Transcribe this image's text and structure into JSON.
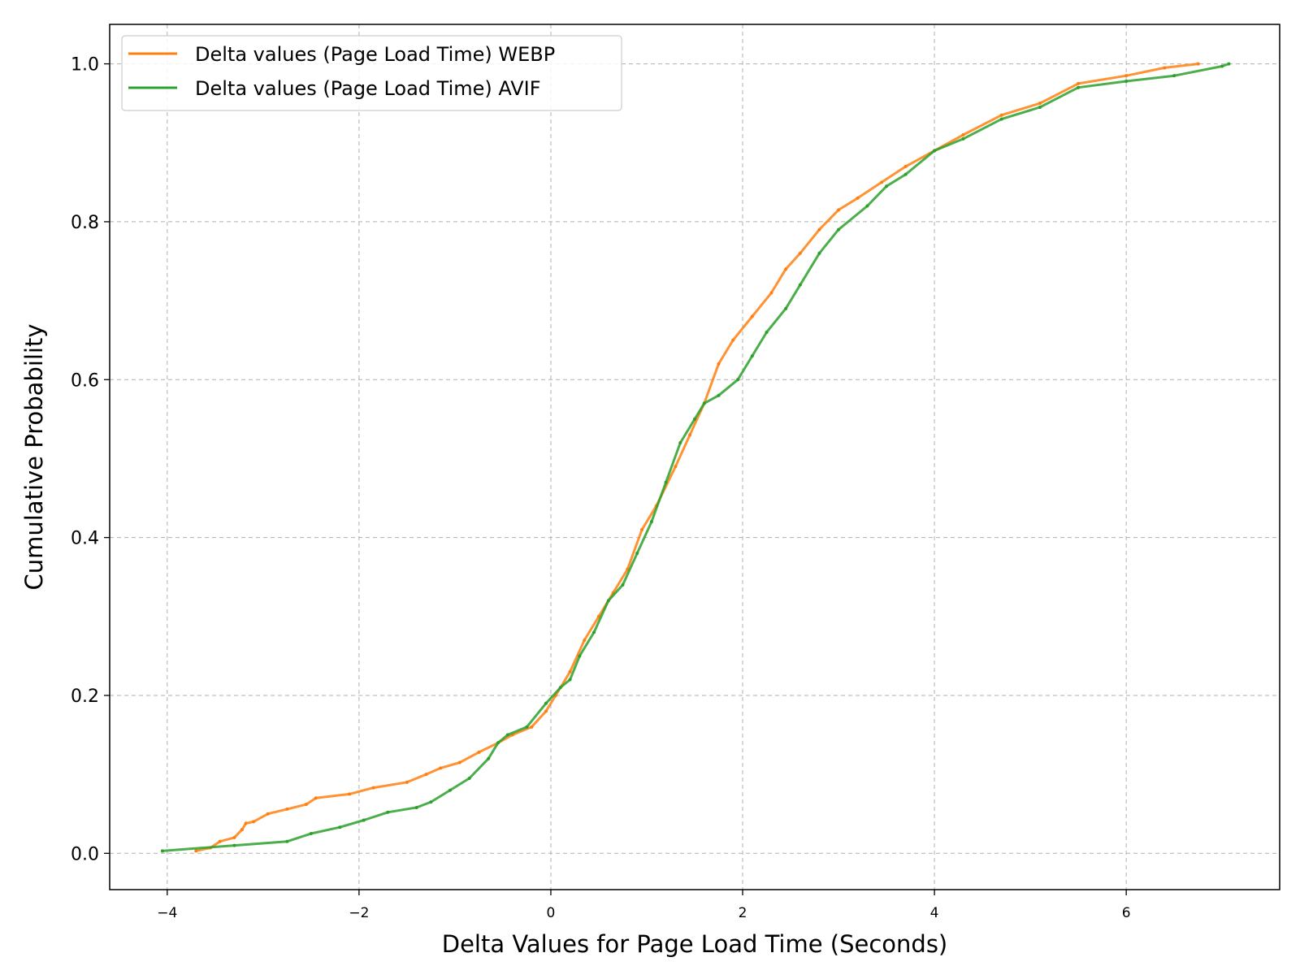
{
  "chart_data": {
    "type": "line",
    "xlabel": "Delta Values for Page Load Time (Seconds)",
    "ylabel": "Cumulative Probability",
    "xlim": [
      -4.6,
      7.6
    ],
    "ylim": [
      -0.046,
      1.05
    ],
    "xticks": [
      -4,
      -2,
      0,
      2,
      4,
      6
    ],
    "xtick_labels": [
      "−4",
      "−2",
      "0",
      "2",
      "4",
      "6"
    ],
    "yticks": [
      0.0,
      0.2,
      0.4,
      0.6,
      0.8,
      1.0
    ],
    "ytick_labels": [
      "0.0",
      "0.2",
      "0.4",
      "0.6",
      "0.8",
      "1.0"
    ],
    "grid": true,
    "legend_position": "top-left",
    "series": [
      {
        "name": "Delta values (Page Load Time) WEBP",
        "color": "#ff7f0e",
        "x": [
          -3.7,
          -3.55,
          -3.45,
          -3.3,
          -3.22,
          -3.18,
          -3.1,
          -2.95,
          -2.75,
          -2.55,
          -2.45,
          -2.1,
          -1.85,
          -1.5,
          -1.3,
          -1.15,
          -0.95,
          -0.75,
          -0.55,
          -0.4,
          -0.2,
          -0.05,
          0.05,
          0.2,
          0.35,
          0.5,
          0.65,
          0.8,
          0.95,
          1.1,
          1.3,
          1.45,
          1.6,
          1.75,
          1.9,
          2.1,
          2.3,
          2.45,
          2.6,
          2.8,
          3.0,
          3.2,
          3.45,
          3.7,
          4.0,
          4.3,
          4.7,
          5.1,
          5.5,
          6.0,
          6.4,
          6.75
        ],
        "y": [
          0.003,
          0.007,
          0.015,
          0.02,
          0.03,
          0.038,
          0.04,
          0.05,
          0.056,
          0.062,
          0.07,
          0.075,
          0.083,
          0.09,
          0.1,
          0.108,
          0.115,
          0.128,
          0.14,
          0.15,
          0.16,
          0.18,
          0.2,
          0.23,
          0.27,
          0.3,
          0.33,
          0.36,
          0.41,
          0.44,
          0.49,
          0.53,
          0.57,
          0.62,
          0.65,
          0.68,
          0.71,
          0.74,
          0.76,
          0.79,
          0.815,
          0.83,
          0.85,
          0.87,
          0.89,
          0.91,
          0.935,
          0.95,
          0.975,
          0.985,
          0.995,
          1.0
        ]
      },
      {
        "name": "Delta values (Page Load Time) AVIF",
        "color": "#2ca02c",
        "x": [
          -4.05,
          -3.3,
          -2.75,
          -2.5,
          -2.2,
          -1.95,
          -1.7,
          -1.4,
          -1.25,
          -1.05,
          -0.85,
          -0.65,
          -0.55,
          -0.45,
          -0.25,
          -0.05,
          0.1,
          0.2,
          0.3,
          0.45,
          0.6,
          0.75,
          0.9,
          1.05,
          1.2,
          1.35,
          1.5,
          1.6,
          1.75,
          1.95,
          2.1,
          2.25,
          2.45,
          2.6,
          2.8,
          3.0,
          3.3,
          3.5,
          3.7,
          4.0,
          4.3,
          4.7,
          5.1,
          5.5,
          6.0,
          6.5,
          7.0,
          7.07
        ],
        "y": [
          0.003,
          0.01,
          0.015,
          0.025,
          0.033,
          0.042,
          0.052,
          0.058,
          0.065,
          0.08,
          0.095,
          0.12,
          0.14,
          0.15,
          0.16,
          0.19,
          0.21,
          0.22,
          0.25,
          0.28,
          0.32,
          0.34,
          0.38,
          0.42,
          0.47,
          0.52,
          0.55,
          0.57,
          0.58,
          0.6,
          0.63,
          0.66,
          0.69,
          0.72,
          0.76,
          0.79,
          0.82,
          0.845,
          0.86,
          0.89,
          0.905,
          0.93,
          0.945,
          0.97,
          0.978,
          0.985,
          0.997,
          1.0
        ]
      }
    ]
  }
}
